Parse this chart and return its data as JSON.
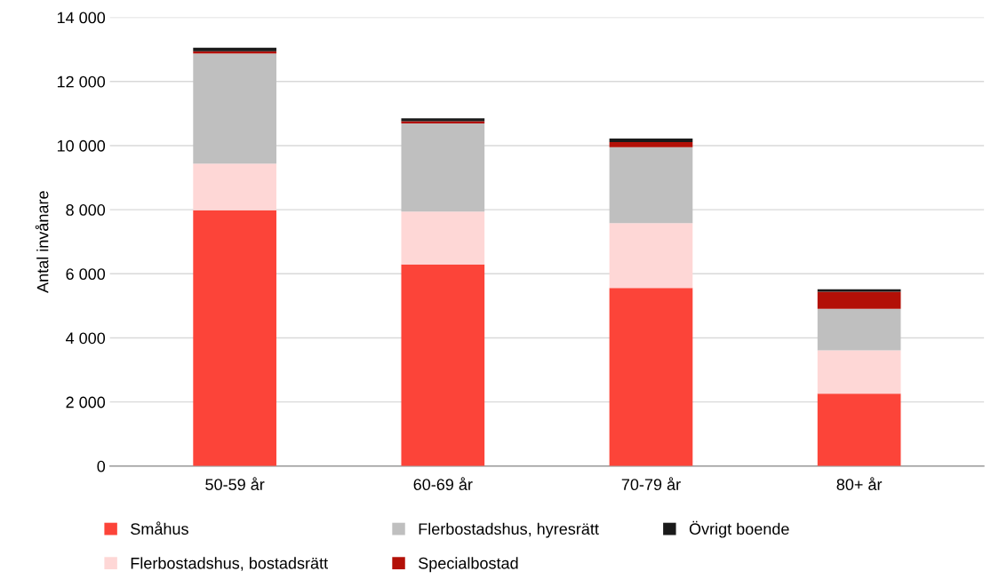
{
  "chart_data": {
    "type": "bar",
    "stacked": true,
    "ylabel": "Antal invånare",
    "categories": [
      "50-59 år",
      "60-69 år",
      "70-79 år",
      "80+ år"
    ],
    "series": [
      {
        "name": "Småhus",
        "color": "#fc4439",
        "values": [
          7980,
          6290,
          5560,
          2260
        ]
      },
      {
        "name": "Flerbostadshus, bostadsrätt",
        "color": "#fed7d6",
        "values": [
          1460,
          1650,
          2020,
          1350
        ]
      },
      {
        "name": "Flerbostadshus, hyresrätt",
        "color": "#bfbfbf",
        "values": [
          3430,
          2750,
          2370,
          1300
        ]
      },
      {
        "name": "Specialbostad",
        "color": "#b31007",
        "values": [
          70,
          70,
          160,
          530
        ]
      },
      {
        "name": "Övrigt boende",
        "color": "#1a1a1a",
        "values": [
          110,
          90,
          110,
          80
        ]
      }
    ],
    "ylim": [
      0,
      14000
    ],
    "yticks": [
      {
        "value": 0,
        "label": "0"
      },
      {
        "value": 2000,
        "label": "2 000"
      },
      {
        "value": 4000,
        "label": "4 000"
      },
      {
        "value": 6000,
        "label": "6 000"
      },
      {
        "value": 8000,
        "label": "8 000"
      },
      {
        "value": 10000,
        "label": "10 000"
      },
      {
        "value": 12000,
        "label": "12 000"
      },
      {
        "value": 14000,
        "label": "14 000"
      }
    ],
    "grid": "y",
    "legend": "bottom"
  }
}
